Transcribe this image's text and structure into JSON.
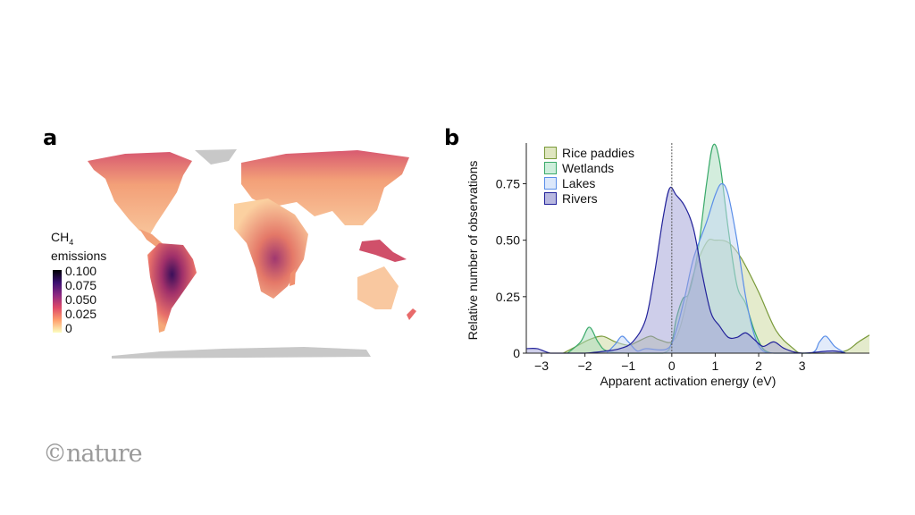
{
  "panel_a": {
    "label": "a",
    "colorbar": {
      "title_main": "CH",
      "title_sub": "4",
      "title_line2": "emissions",
      "ticks": [
        "0.100",
        "0.075",
        "0.050",
        "0.025",
        "0"
      ],
      "colormap": "magma"
    },
    "colors": {
      "land_low": "#fcd6a0",
      "land_mid": "#f08a6a",
      "land_high": "#5a1a6a",
      "no_data": "#c8c8c8"
    }
  },
  "panel_b": {
    "label": "b"
  },
  "logo": "©nature",
  "chart_data": {
    "type": "area",
    "xlabel": "Apparent activation energy (eV)",
    "ylabel": "Relative number of observations",
    "xlim": [
      -3.35,
      4.55
    ],
    "ylim": [
      0,
      0.93
    ],
    "xticks": [
      -3,
      -2,
      -1,
      0,
      1,
      2,
      3
    ],
    "xtick_labels": [
      "−3",
      "−2",
      "−1",
      "0",
      "1",
      "2",
      "3"
    ],
    "yticks": [
      0,
      0.25,
      0.5,
      0.75
    ],
    "ytick_labels": [
      "0",
      "0.25",
      "0.50",
      "0.75"
    ],
    "reference_line_x": 0,
    "legend_position": "top-left",
    "grid": false,
    "series": [
      {
        "name": "Rice paddies",
        "line": "#7a9a3a",
        "fill": "#c9d79a",
        "x": [
          -2.5,
          -2.2,
          -1.9,
          -1.6,
          -1.3,
          -1.0,
          -0.8,
          -0.5,
          -0.3,
          0,
          0.2,
          0.5,
          0.8,
          1.0,
          1.3,
          1.6,
          2.0,
          2.4,
          2.8,
          3.0,
          3.5,
          4.0,
          4.3,
          4.55
        ],
        "y": [
          0,
          0.03,
          0.06,
          0.075,
          0.05,
          0.035,
          0.05,
          0.075,
          0.06,
          0.05,
          0.12,
          0.35,
          0.49,
          0.5,
          0.49,
          0.42,
          0.27,
          0.1,
          0.02,
          0,
          0,
          0.01,
          0.05,
          0.08
        ]
      },
      {
        "name": "Wetlands",
        "line": "#3aaa6a",
        "fill": "#a8dcbc",
        "x": [
          -2.4,
          -2.1,
          -1.9,
          -1.7,
          -1.5,
          -1.0,
          -0.2,
          0,
          0.1,
          0.25,
          0.4,
          0.6,
          0.8,
          0.95,
          1.1,
          1.3,
          1.5,
          1.7,
          1.9,
          2.1,
          2.3
        ],
        "y": [
          0,
          0.05,
          0.115,
          0.05,
          0.01,
          0,
          0,
          0.05,
          0.15,
          0.24,
          0.27,
          0.45,
          0.75,
          0.92,
          0.85,
          0.55,
          0.3,
          0.22,
          0.1,
          0.02,
          0
        ]
      },
      {
        "name": "Lakes",
        "line": "#5a8ee8",
        "fill": "#c6d8f6",
        "x": [
          -1.5,
          -1.3,
          -1.15,
          -1.0,
          -0.8,
          -0.6,
          -0.1,
          0.1,
          0.3,
          0.5,
          0.8,
          1.0,
          1.15,
          1.3,
          1.5,
          1.7,
          1.9,
          2.1,
          2.4,
          3.2,
          3.4,
          3.55,
          3.75,
          4.0
        ],
        "y": [
          0,
          0.04,
          0.075,
          0.05,
          0.01,
          0.02,
          0.02,
          0.1,
          0.25,
          0.42,
          0.58,
          0.7,
          0.75,
          0.7,
          0.5,
          0.25,
          0.08,
          0.01,
          0,
          0,
          0.05,
          0.075,
          0.03,
          0
        ]
      },
      {
        "name": "Rivers",
        "line": "#22229a",
        "fill": "#9d9dd6",
        "x": [
          -3.35,
          -3.1,
          -2.8,
          -2.5,
          -2.0,
          -1.5,
          -1.2,
          -0.9,
          -0.6,
          -0.4,
          -0.2,
          -0.05,
          0.1,
          0.3,
          0.5,
          0.7,
          0.9,
          1.1,
          1.3,
          1.5,
          1.7,
          1.9,
          2.1,
          2.35,
          2.6,
          3.0,
          3.7,
          4.0
        ],
        "y": [
          0.02,
          0.02,
          0,
          0,
          0,
          0.01,
          0.02,
          0.05,
          0.15,
          0.35,
          0.6,
          0.73,
          0.7,
          0.65,
          0.55,
          0.35,
          0.18,
          0.12,
          0.07,
          0.07,
          0.09,
          0.06,
          0.03,
          0.05,
          0.02,
          0,
          0.01,
          0
        ]
      }
    ]
  }
}
